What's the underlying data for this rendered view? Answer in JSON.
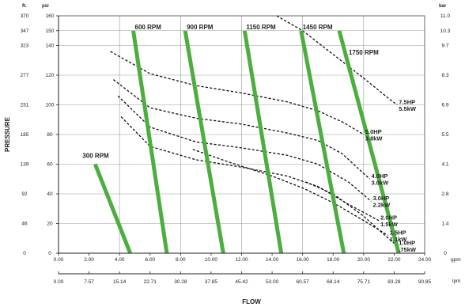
{
  "chart_data": {
    "type": "line",
    "title": "",
    "xlabel": "FLOW",
    "ylabel": "PRESSURE",
    "x_axis_primary": {
      "unit": "gpm",
      "range": [
        0,
        24
      ],
      "ticks": [
        "0.00",
        "2.00",
        "4.00",
        "6.00",
        "8.00",
        "10.00",
        "12.00",
        "14.00",
        "16.00",
        "18.00",
        "20.00",
        "22.00",
        "24.00"
      ]
    },
    "x_axis_secondary": {
      "unit": "lpm",
      "range": [
        0,
        90.85
      ],
      "ticks": [
        "0.00",
        "7.57",
        "15.14",
        "22.71",
        "30.28",
        "37.85",
        "45.42",
        "53.00",
        "60.57",
        "68.14",
        "75.71",
        "83.28",
        "90.85"
      ]
    },
    "y_axis_left_psi": {
      "unit": "psi",
      "range": [
        0,
        160
      ],
      "ticks": [
        "0",
        "20",
        "40",
        "60",
        "80",
        "100",
        "120",
        "140",
        "150",
        "160"
      ]
    },
    "y_axis_left_ft": {
      "unit": "ft.",
      "ticks": [
        "0",
        "46",
        "92",
        "139",
        "185",
        "231",
        "277",
        "323",
        "347",
        "370"
      ]
    },
    "y_axis_right_bar": {
      "unit": "bar",
      "ticks": [
        "0",
        "1.4",
        "2.8",
        "4.1",
        "5.5",
        "6.9",
        "8.3",
        "9.7",
        "10.3",
        "11.0"
      ]
    },
    "grid": true,
    "rpm_series": [
      {
        "name": "300 RPM",
        "x": [
          2.4,
          4.7
        ],
        "y": [
          60,
          0
        ]
      },
      {
        "name": "600 RPM",
        "x": [
          4.9,
          7.1
        ],
        "y": [
          150,
          0
        ]
      },
      {
        "name": "900 RPM",
        "x": [
          8.3,
          10.8
        ],
        "y": [
          150,
          0
        ]
      },
      {
        "name": "1150 RPM",
        "x": [
          12.2,
          14.6
        ],
        "y": [
          150,
          0
        ]
      },
      {
        "name": "1450 RPM",
        "x": [
          15.9,
          18.7
        ],
        "y": [
          150,
          0
        ]
      },
      {
        "name": "1750 RPM",
        "x": [
          18.4,
          22.3
        ],
        "y": [
          150,
          0
        ]
      }
    ],
    "power_series": [
      {
        "name": "7.5HP 5.5kW",
        "label_lines": [
          "7.5HP",
          "5.5kW"
        ],
        "x": [
          14.3,
          16,
          18,
          20,
          21.8,
          22.2
        ],
        "y": [
          160,
          150,
          134,
          118,
          103,
          100
        ]
      },
      {
        "name": "5.0HP 3.8kW",
        "label_lines": [
          "5.0HP",
          "3.8kW"
        ],
        "x": [
          3.4,
          6,
          9,
          12,
          15,
          17,
          18.7,
          20
        ],
        "y": [
          136,
          121,
          113,
          108,
          102,
          96,
          88,
          80
        ]
      },
      {
        "name": "4.0HP 3.0kW",
        "label_lines": [
          "4.0HP",
          "3.0kW"
        ],
        "x": [
          3.6,
          6,
          9,
          12,
          15,
          17,
          18.6,
          20.4
        ],
        "y": [
          117,
          98,
          91,
          87,
          81,
          76,
          67,
          50
        ]
      },
      {
        "name": "3.0HP 2.2kW",
        "label_lines": [
          "3.0HP",
          "2.2kW"
        ],
        "x": [
          3.9,
          6,
          9,
          12,
          15,
          17,
          19,
          20.5
        ],
        "y": [
          106,
          85,
          75,
          71,
          66,
          60,
          48,
          35
        ]
      },
      {
        "name": "2.0HP 1.5kW",
        "label_lines": [
          "2.0HP",
          "1.5kW"
        ],
        "x": [
          4.1,
          6,
          9,
          12,
          15,
          17,
          19,
          21
        ],
        "y": [
          92,
          72,
          63,
          58,
          52,
          45,
          33,
          22
        ]
      },
      {
        "name": "1.5HP 1.1kW",
        "label_lines": [
          "1.5HP",
          "1.1kW"
        ],
        "x": [
          8.8,
          11,
          14,
          16,
          18,
          20,
          21.6
        ],
        "y": [
          70,
          62,
          52,
          44,
          34,
          22,
          12
        ]
      },
      {
        "name": "1.0HP .75kW",
        "label_lines": [
          "1.0HP",
          ".75kW"
        ],
        "x": [
          16.2,
          18,
          20,
          21.4,
          22.2
        ],
        "y": [
          48,
          40,
          25,
          12,
          5
        ]
      }
    ]
  }
}
